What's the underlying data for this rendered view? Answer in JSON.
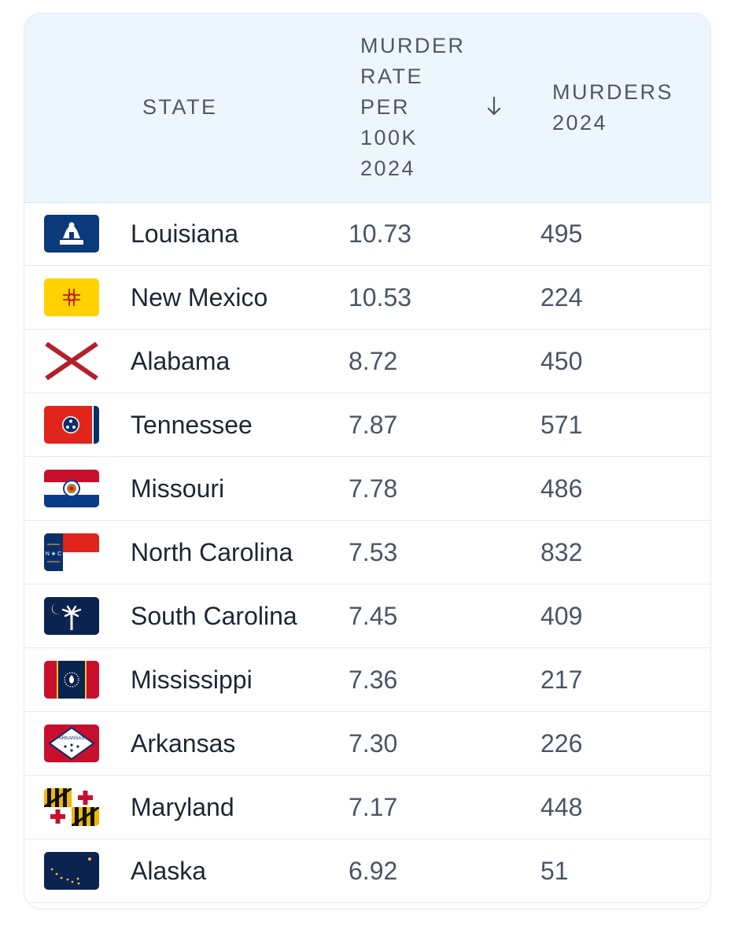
{
  "table": {
    "headers": {
      "state": "STATE",
      "rate_lines": [
        "MURDER",
        "RATE",
        "PER",
        "100K",
        "2024"
      ],
      "murders_lines": [
        "MURDERS",
        "2024"
      ]
    },
    "sort": {
      "column": "rate",
      "direction": "descending",
      "icon": "arrow-down-icon"
    },
    "rows": [
      {
        "state": "Louisiana",
        "rate": "10.73",
        "murders": "495",
        "flag_icon": "louisiana-flag-icon"
      },
      {
        "state": "New Mexico",
        "rate": "10.53",
        "murders": "224",
        "flag_icon": "new-mexico-flag-icon"
      },
      {
        "state": "Alabama",
        "rate": "8.72",
        "murders": "450",
        "flag_icon": "alabama-flag-icon"
      },
      {
        "state": "Tennessee",
        "rate": "7.87",
        "murders": "571",
        "flag_icon": "tennessee-flag-icon"
      },
      {
        "state": "Missouri",
        "rate": "7.78",
        "murders": "486",
        "flag_icon": "missouri-flag-icon"
      },
      {
        "state": "North Carolina",
        "rate": "7.53",
        "murders": "832",
        "flag_icon": "north-carolina-flag-icon"
      },
      {
        "state": "South Carolina",
        "rate": "7.45",
        "murders": "409",
        "flag_icon": "south-carolina-flag-icon"
      },
      {
        "state": "Mississippi",
        "rate": "7.36",
        "murders": "217",
        "flag_icon": "mississippi-flag-icon"
      },
      {
        "state": "Arkansas",
        "rate": "7.30",
        "murders": "226",
        "flag_icon": "arkansas-flag-icon"
      },
      {
        "state": "Maryland",
        "rate": "7.17",
        "murders": "448",
        "flag_icon": "maryland-flag-icon"
      },
      {
        "state": "Alaska",
        "rate": "6.92",
        "murders": "51",
        "flag_icon": "alaska-flag-icon"
      }
    ],
    "flag_text": {
      "arkansas": "ARKANSAS",
      "north_carolina": "N ★ C"
    }
  },
  "colors": {
    "header_bg": "#eef6fd",
    "header_text": "#4c5868",
    "state_text": "#1e2633",
    "value_text": "#4a5566",
    "divider": "#e6e9ee"
  }
}
